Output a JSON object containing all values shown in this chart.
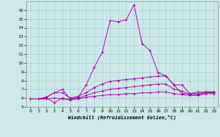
{
  "background_color": "#cce8e8",
  "grid_color": "#aacccc",
  "line_color": "#aa00aa",
  "xlabel": "Windchill (Refroidissement éolien,°C)",
  "xlim": [
    -0.5,
    23.5
  ],
  "ylim": [
    5,
    17
  ],
  "yticks": [
    5,
    6,
    7,
    8,
    9,
    10,
    11,
    12,
    13,
    14,
    15,
    16
  ],
  "xticks": [
    0,
    1,
    2,
    3,
    4,
    5,
    6,
    7,
    8,
    9,
    10,
    11,
    12,
    13,
    14,
    15,
    16,
    17,
    18,
    19,
    20,
    21,
    22,
    23
  ],
  "series": [
    {
      "x": [
        0,
        1,
        2,
        3,
        4,
        5,
        6,
        7,
        8,
        9,
        10,
        11,
        12,
        13,
        14,
        15,
        16,
        17,
        18,
        19,
        20,
        21,
        22,
        23
      ],
      "y": [
        5.9,
        5.9,
        6.1,
        6.6,
        7.0,
        5.9,
        6.1,
        7.5,
        9.5,
        11.2,
        14.8,
        14.7,
        14.9,
        16.6,
        12.2,
        11.4,
        8.9,
        8.5,
        7.5,
        6.5,
        6.5,
        6.7,
        6.7,
        6.7
      ]
    },
    {
      "x": [
        0,
        1,
        2,
        3,
        4,
        5,
        6,
        7,
        8,
        9,
        10,
        11,
        12,
        13,
        14,
        15,
        16,
        17,
        18,
        19,
        20,
        21,
        22,
        23
      ],
      "y": [
        5.9,
        5.9,
        6.1,
        6.6,
        6.6,
        6.0,
        6.2,
        6.6,
        7.2,
        7.6,
        7.9,
        8.0,
        8.1,
        8.2,
        8.3,
        8.4,
        8.5,
        8.5,
        7.5,
        7.5,
        6.5,
        6.5,
        6.7,
        6.7
      ]
    },
    {
      "x": [
        0,
        1,
        2,
        3,
        4,
        5,
        6,
        7,
        8,
        9,
        10,
        11,
        12,
        13,
        14,
        15,
        16,
        17,
        18,
        19,
        20,
        21,
        22,
        23
      ],
      "y": [
        5.9,
        5.9,
        6.0,
        5.5,
        6.0,
        5.8,
        6.0,
        6.3,
        6.6,
        6.8,
        7.0,
        7.1,
        7.2,
        7.3,
        7.4,
        7.5,
        7.6,
        7.6,
        7.0,
        6.8,
        6.4,
        6.4,
        6.6,
        6.6
      ]
    },
    {
      "x": [
        0,
        1,
        2,
        3,
        4,
        5,
        6,
        7,
        8,
        9,
        10,
        11,
        12,
        13,
        14,
        15,
        16,
        17,
        18,
        19,
        20,
        21,
        22,
        23
      ],
      "y": [
        5.9,
        5.9,
        5.9,
        6.0,
        5.9,
        5.8,
        5.9,
        6.1,
        6.2,
        6.3,
        6.4,
        6.4,
        6.5,
        6.5,
        6.6,
        6.6,
        6.7,
        6.7,
        6.5,
        6.4,
        6.3,
        6.3,
        6.5,
        6.5
      ]
    }
  ]
}
